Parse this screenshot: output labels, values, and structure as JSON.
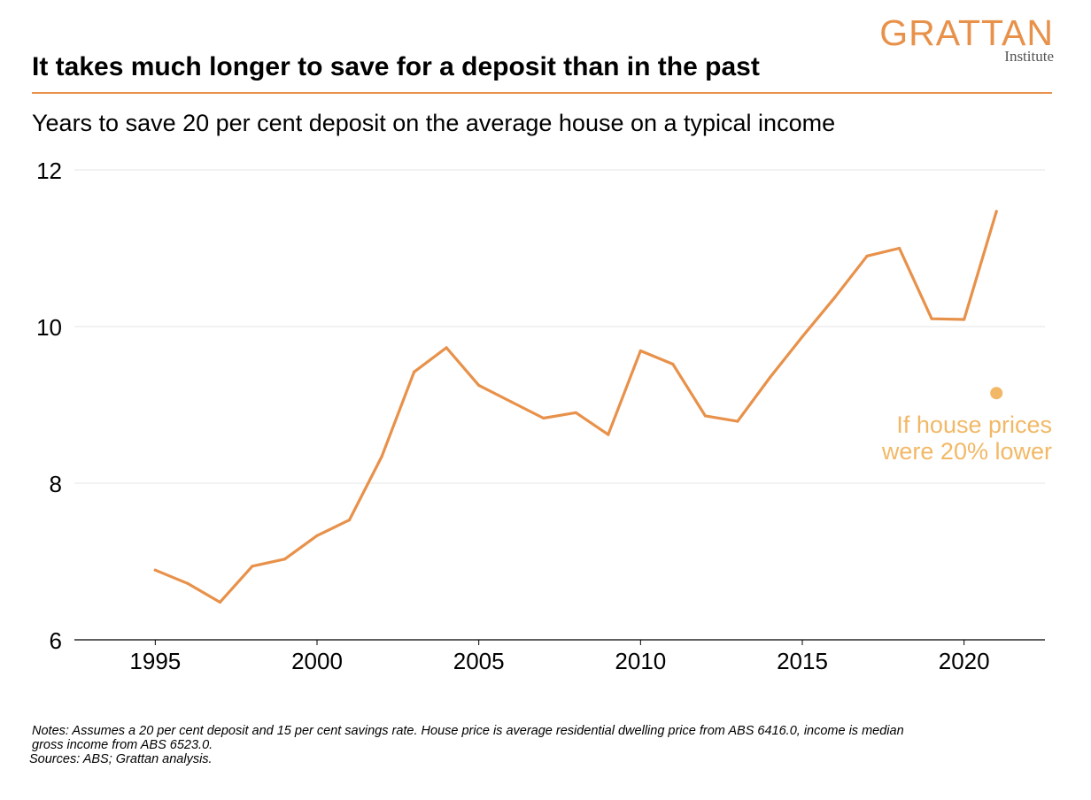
{
  "logo": {
    "word": "GRATTAN",
    "sub": "Institute"
  },
  "colors": {
    "accent": "#E8914A",
    "annotation": "#F2B866",
    "grid": "#e4e4e4",
    "axis": "#000000"
  },
  "title": "It takes much longer to save for a deposit than in the past",
  "subtitle": "Years to save 20 per cent deposit on the average house on a typical income",
  "chart_data": {
    "type": "line",
    "title": "",
    "xlabel": "",
    "ylabel": "",
    "x": [
      1995,
      1996,
      1997,
      1998,
      1999,
      2000,
      2001,
      2002,
      2003,
      2004,
      2005,
      2006,
      2007,
      2008,
      2009,
      2010,
      2011,
      2012,
      2013,
      2014,
      2015,
      2016,
      2017,
      2018,
      2019,
      2020,
      2021
    ],
    "series": [
      {
        "values": [
          6.89,
          6.72,
          6.48,
          6.94,
          7.03,
          7.33,
          7.53,
          8.34,
          9.42,
          9.73,
          9.25,
          9.04,
          8.83,
          8.9,
          8.62,
          9.69,
          9.52,
          8.86,
          8.79,
          9.35,
          9.87,
          10.37,
          10.9,
          11.0,
          10.1,
          10.09,
          11.47
        ]
      }
    ],
    "annotation_point": {
      "x": 2021,
      "y": 9.15,
      "label_lines": [
        "If house prices",
        "were 20% lower"
      ]
    },
    "xlim": [
      1992.5,
      2022.5
    ],
    "ylim": [
      6,
      12
    ],
    "xticks": [
      1995,
      2000,
      2005,
      2010,
      2015,
      2020
    ],
    "yticks": [
      6,
      8,
      10,
      12
    ],
    "grid": true,
    "legend": "none"
  },
  "notes": {
    "line1": "Notes: Assumes a 20 per cent deposit and 15 per cent savings rate. House price is average residential dwelling price from ABS 6416.0, income is median",
    "line2": "gross income from ABS 6523.0.",
    "sources": "Sources: ABS; Grattan analysis."
  }
}
